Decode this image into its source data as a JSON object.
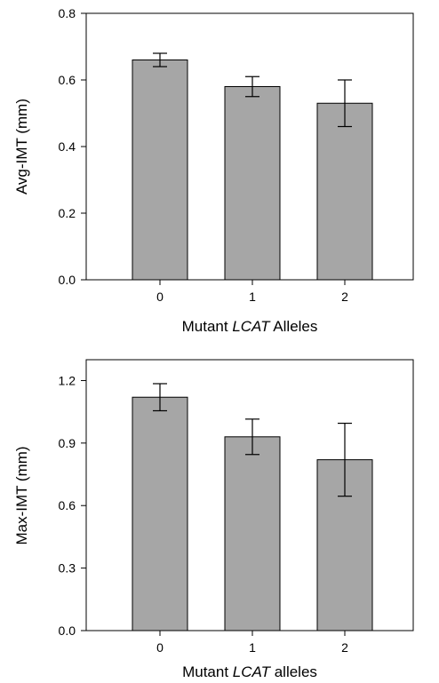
{
  "chart_data": [
    {
      "type": "bar",
      "categories": [
        "0",
        "1",
        "2"
      ],
      "values": [
        0.66,
        0.58,
        0.53
      ],
      "errors": [
        0.02,
        0.03,
        0.07
      ],
      "xlabel_parts": [
        "Mutant ",
        "LCAT",
        " Alleles"
      ],
      "ylabel": "Avg-IMT (mm)",
      "ylim": [
        0,
        0.8
      ],
      "yticks": [
        "0.0",
        "0.2",
        "0.4",
        "0.6",
        "0.8"
      ],
      "bar_color": "#a6a6a6",
      "grid": false
    },
    {
      "type": "bar",
      "categories": [
        "0",
        "1",
        "2"
      ],
      "values": [
        1.12,
        0.93,
        0.82
      ],
      "errors": [
        0.065,
        0.085,
        0.175
      ],
      "xlabel_parts": [
        "Mutant ",
        "LCAT",
        " alleles"
      ],
      "ylabel": "Max-IMT (mm)",
      "ylim": [
        0,
        1.3
      ],
      "yticks": [
        "0.0",
        "0.3",
        "0.6",
        "0.9",
        "1.2"
      ],
      "bar_color": "#a6a6a6",
      "grid": false
    }
  ]
}
